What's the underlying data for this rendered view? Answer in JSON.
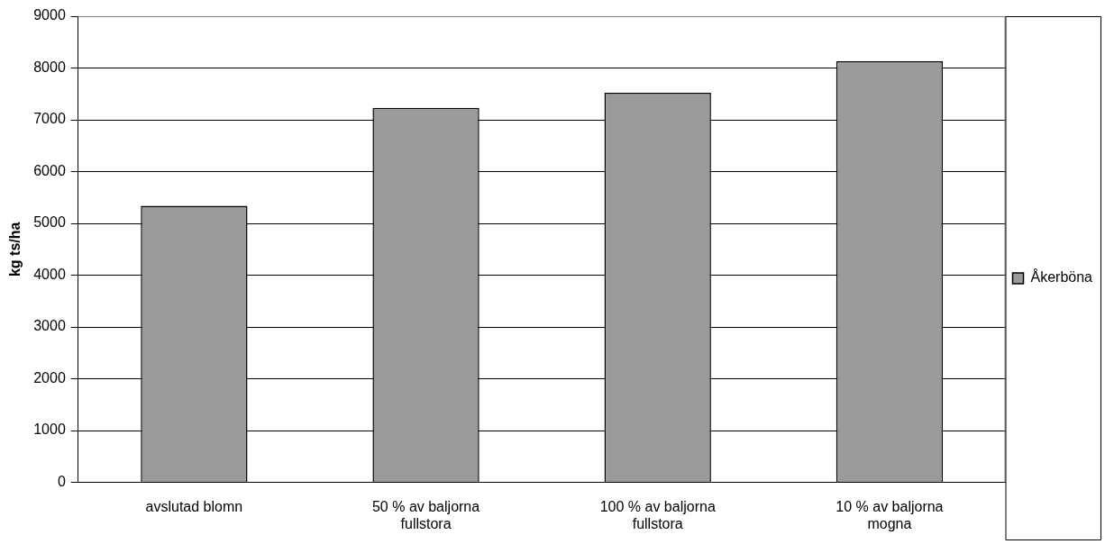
{
  "chart_data": {
    "type": "bar",
    "ylabel": "kg ts/ha",
    "categories": [
      "avslutad blomn",
      "50 % av baljorna fullstora",
      "100 % av baljorna fullstora",
      "10 % av baljorna mogna"
    ],
    "series": [
      {
        "name": "Åkerböna",
        "color": "#9a9a9a",
        "values": [
          5340,
          7230,
          7520,
          8130
        ]
      }
    ],
    "ylim": [
      0,
      9000
    ],
    "yticks": [
      0,
      1000,
      2000,
      3000,
      4000,
      5000,
      6000,
      7000,
      8000,
      9000
    ],
    "grid": "y",
    "legend": "right"
  }
}
